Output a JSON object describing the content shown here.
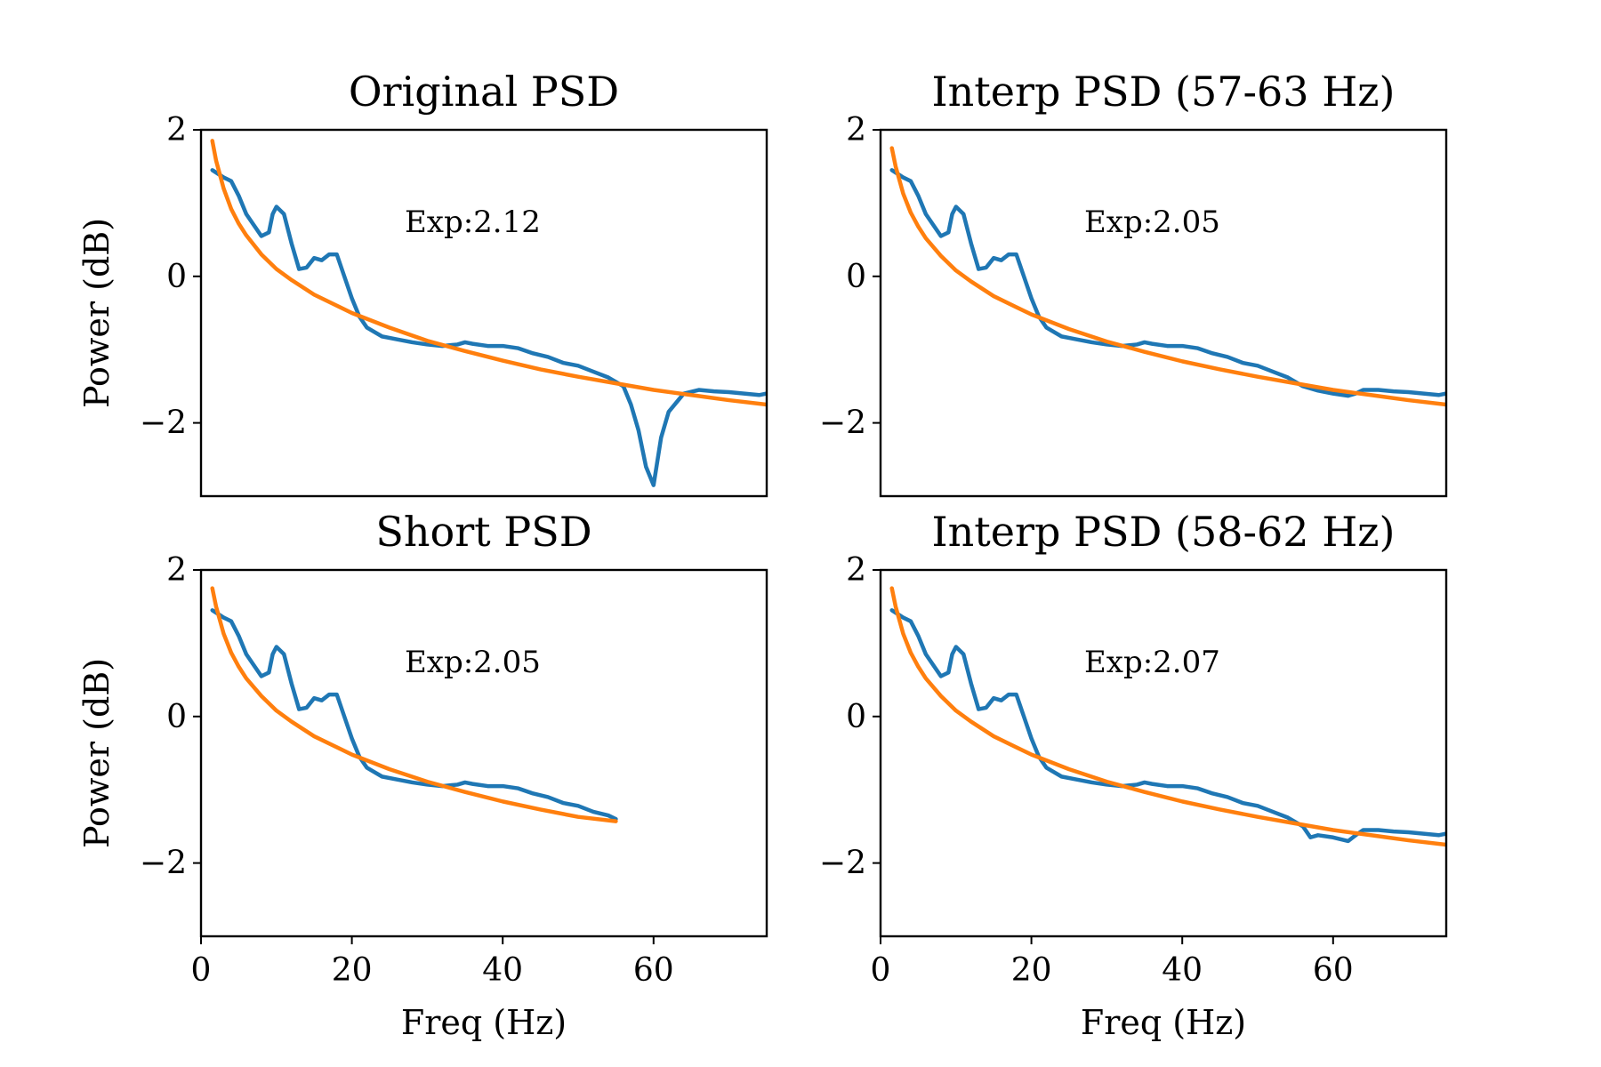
{
  "chart_data": [
    {
      "type": "line",
      "title": "Original PSD",
      "xlabel": "",
      "ylabel": "Power (dB)",
      "xlim": [
        0,
        75
      ],
      "ylim": [
        -3,
        2
      ],
      "xticks": [],
      "yticks": [
        -2,
        0,
        2
      ],
      "ytick_labels": [
        "−2",
        "0",
        "2"
      ],
      "annotation": {
        "text": "Exp:2.12",
        "x": 27,
        "y": 0.75
      },
      "series": [
        {
          "color": "#1f77b4",
          "x": [
            1.5,
            3,
            4,
            5,
            6,
            7,
            8,
            9,
            9.5,
            10,
            11,
            12,
            13,
            14,
            15,
            16,
            17,
            18,
            19,
            20,
            21,
            22,
            24,
            26,
            28,
            30,
            32,
            34,
            35,
            36,
            38,
            40,
            42,
            44,
            46,
            48,
            50,
            52,
            54,
            56,
            57,
            58,
            59,
            60,
            61,
            62,
            64,
            66,
            68,
            70,
            72,
            74,
            75
          ],
          "y": [
            1.45,
            1.35,
            1.3,
            1.1,
            0.85,
            0.7,
            0.55,
            0.6,
            0.85,
            0.95,
            0.85,
            0.45,
            0.1,
            0.12,
            0.25,
            0.22,
            0.3,
            0.3,
            0.0,
            -0.3,
            -0.55,
            -0.7,
            -0.82,
            -0.86,
            -0.9,
            -0.93,
            -0.95,
            -0.93,
            -0.9,
            -0.92,
            -0.95,
            -0.95,
            -0.98,
            -1.05,
            -1.1,
            -1.18,
            -1.22,
            -1.3,
            -1.38,
            -1.5,
            -1.75,
            -2.1,
            -2.6,
            -2.85,
            -2.2,
            -1.85,
            -1.6,
            -1.55,
            -1.57,
            -1.58,
            -1.6,
            -1.62,
            -1.6
          ]
        },
        {
          "color": "#ff7f0e",
          "fit": "power_law",
          "exponent": 2.12,
          "x": [
            1.5,
            2,
            3,
            4,
            5,
            6,
            8,
            10,
            12,
            15,
            20,
            25,
            30,
            35,
            40,
            45,
            50,
            55,
            60,
            65,
            70,
            75
          ],
          "y": [
            1.85,
            1.58,
            1.2,
            0.92,
            0.72,
            0.56,
            0.3,
            0.1,
            -0.05,
            -0.25,
            -0.5,
            -0.7,
            -0.88,
            -1.02,
            -1.15,
            -1.27,
            -1.37,
            -1.46,
            -1.55,
            -1.62,
            -1.69,
            -1.75
          ]
        }
      ]
    },
    {
      "type": "line",
      "title": "Interp PSD (57-63 Hz)",
      "xlabel": "",
      "ylabel": "",
      "xlim": [
        0,
        75
      ],
      "ylim": [
        -3,
        2
      ],
      "xticks": [],
      "yticks": [
        -2,
        0,
        2
      ],
      "ytick_labels": [
        "−2",
        "0",
        "2"
      ],
      "annotation": {
        "text": "Exp:2.05",
        "x": 27,
        "y": 0.75
      },
      "series": [
        {
          "color": "#1f77b4",
          "x": [
            1.5,
            3,
            4,
            5,
            6,
            7,
            8,
            9,
            9.5,
            10,
            11,
            12,
            13,
            14,
            15,
            16,
            17,
            18,
            19,
            20,
            21,
            22,
            24,
            26,
            28,
            30,
            32,
            34,
            35,
            36,
            38,
            40,
            42,
            44,
            46,
            48,
            50,
            52,
            54,
            56,
            57,
            58,
            60,
            62,
            63,
            64,
            66,
            68,
            70,
            72,
            74,
            75
          ],
          "y": [
            1.45,
            1.35,
            1.3,
            1.1,
            0.85,
            0.7,
            0.55,
            0.6,
            0.85,
            0.95,
            0.85,
            0.45,
            0.1,
            0.12,
            0.25,
            0.22,
            0.3,
            0.3,
            0.0,
            -0.3,
            -0.55,
            -0.7,
            -0.82,
            -0.86,
            -0.9,
            -0.93,
            -0.95,
            -0.93,
            -0.9,
            -0.92,
            -0.95,
            -0.95,
            -0.98,
            -1.05,
            -1.1,
            -1.18,
            -1.22,
            -1.3,
            -1.38,
            -1.5,
            -1.53,
            -1.56,
            -1.6,
            -1.63,
            -1.6,
            -1.55,
            -1.55,
            -1.57,
            -1.58,
            -1.6,
            -1.62,
            -1.6
          ]
        },
        {
          "color": "#ff7f0e",
          "fit": "power_law",
          "exponent": 2.05,
          "x": [
            1.5,
            2,
            3,
            4,
            5,
            6,
            8,
            10,
            12,
            15,
            20,
            25,
            30,
            35,
            40,
            45,
            50,
            55,
            60,
            65,
            70,
            75
          ],
          "y": [
            1.75,
            1.5,
            1.13,
            0.87,
            0.68,
            0.52,
            0.28,
            0.08,
            -0.07,
            -0.27,
            -0.52,
            -0.72,
            -0.89,
            -1.03,
            -1.16,
            -1.27,
            -1.37,
            -1.46,
            -1.55,
            -1.62,
            -1.69,
            -1.75
          ]
        }
      ]
    },
    {
      "type": "line",
      "title": "Short PSD",
      "xlabel": "Freq (Hz)",
      "ylabel": "Power (dB)",
      "xlim": [
        0,
        75
      ],
      "ylim": [
        -3,
        2
      ],
      "xticks": [
        0,
        20,
        40,
        60
      ],
      "xtick_labels": [
        "0",
        "20",
        "40",
        "60"
      ],
      "yticks": [
        -2,
        0,
        2
      ],
      "ytick_labels": [
        "−2",
        "0",
        "2"
      ],
      "annotation": {
        "text": "Exp:2.05",
        "x": 27,
        "y": 0.75
      },
      "series": [
        {
          "color": "#1f77b4",
          "x": [
            1.5,
            3,
            4,
            5,
            6,
            7,
            8,
            9,
            9.5,
            10,
            11,
            12,
            13,
            14,
            15,
            16,
            17,
            18,
            19,
            20,
            21,
            22,
            24,
            26,
            28,
            30,
            32,
            34,
            35,
            36,
            38,
            40,
            42,
            44,
            46,
            48,
            50,
            52,
            54,
            55
          ],
          "y": [
            1.45,
            1.35,
            1.3,
            1.1,
            0.85,
            0.7,
            0.55,
            0.6,
            0.85,
            0.95,
            0.85,
            0.45,
            0.1,
            0.12,
            0.25,
            0.22,
            0.3,
            0.3,
            0.0,
            -0.3,
            -0.55,
            -0.7,
            -0.82,
            -0.86,
            -0.9,
            -0.93,
            -0.95,
            -0.93,
            -0.9,
            -0.92,
            -0.95,
            -0.95,
            -0.98,
            -1.05,
            -1.1,
            -1.18,
            -1.22,
            -1.3,
            -1.35,
            -1.4
          ]
        },
        {
          "color": "#ff7f0e",
          "fit": "power_law",
          "exponent": 2.05,
          "x": [
            1.5,
            2,
            3,
            4,
            5,
            6,
            8,
            10,
            12,
            15,
            20,
            25,
            30,
            35,
            40,
            45,
            50,
            55
          ],
          "y": [
            1.75,
            1.5,
            1.13,
            0.87,
            0.68,
            0.52,
            0.28,
            0.08,
            -0.07,
            -0.27,
            -0.52,
            -0.72,
            -0.89,
            -1.03,
            -1.16,
            -1.27,
            -1.37,
            -1.43
          ]
        }
      ]
    },
    {
      "type": "line",
      "title": "Interp PSD (58-62 Hz)",
      "xlabel": "Freq (Hz)",
      "ylabel": "",
      "xlim": [
        0,
        75
      ],
      "ylim": [
        -3,
        2
      ],
      "xticks": [
        0,
        20,
        40,
        60
      ],
      "xtick_labels": [
        "0",
        "20",
        "40",
        "60"
      ],
      "yticks": [
        -2,
        0,
        2
      ],
      "ytick_labels": [
        "−2",
        "0",
        "2"
      ],
      "annotation": {
        "text": "Exp:2.07",
        "x": 27,
        "y": 0.75
      },
      "series": [
        {
          "color": "#1f77b4",
          "x": [
            1.5,
            3,
            4,
            5,
            6,
            7,
            8,
            9,
            9.5,
            10,
            11,
            12,
            13,
            14,
            15,
            16,
            17,
            18,
            19,
            20,
            21,
            22,
            24,
            26,
            28,
            30,
            32,
            34,
            35,
            36,
            38,
            40,
            42,
            44,
            46,
            48,
            50,
            52,
            54,
            56,
            57,
            58,
            60,
            62,
            63,
            64,
            66,
            68,
            70,
            72,
            74,
            75
          ],
          "y": [
            1.45,
            1.35,
            1.3,
            1.1,
            0.85,
            0.7,
            0.55,
            0.6,
            0.85,
            0.95,
            0.85,
            0.45,
            0.1,
            0.12,
            0.25,
            0.22,
            0.3,
            0.3,
            0.0,
            -0.3,
            -0.55,
            -0.7,
            -0.82,
            -0.86,
            -0.9,
            -0.93,
            -0.95,
            -0.93,
            -0.9,
            -0.92,
            -0.95,
            -0.95,
            -0.98,
            -1.05,
            -1.1,
            -1.18,
            -1.22,
            -1.3,
            -1.38,
            -1.5,
            -1.65,
            -1.62,
            -1.65,
            -1.7,
            -1.62,
            -1.55,
            -1.55,
            -1.57,
            -1.58,
            -1.6,
            -1.62,
            -1.6
          ]
        },
        {
          "color": "#ff7f0e",
          "fit": "power_law",
          "exponent": 2.07,
          "x": [
            1.5,
            2,
            3,
            4,
            5,
            6,
            8,
            10,
            12,
            15,
            20,
            25,
            30,
            35,
            40,
            45,
            50,
            55,
            60,
            65,
            70,
            75
          ],
          "y": [
            1.75,
            1.5,
            1.13,
            0.87,
            0.68,
            0.52,
            0.28,
            0.08,
            -0.07,
            -0.27,
            -0.52,
            -0.72,
            -0.89,
            -1.03,
            -1.16,
            -1.27,
            -1.37,
            -1.46,
            -1.55,
            -1.62,
            -1.69,
            -1.75
          ]
        }
      ]
    }
  ]
}
